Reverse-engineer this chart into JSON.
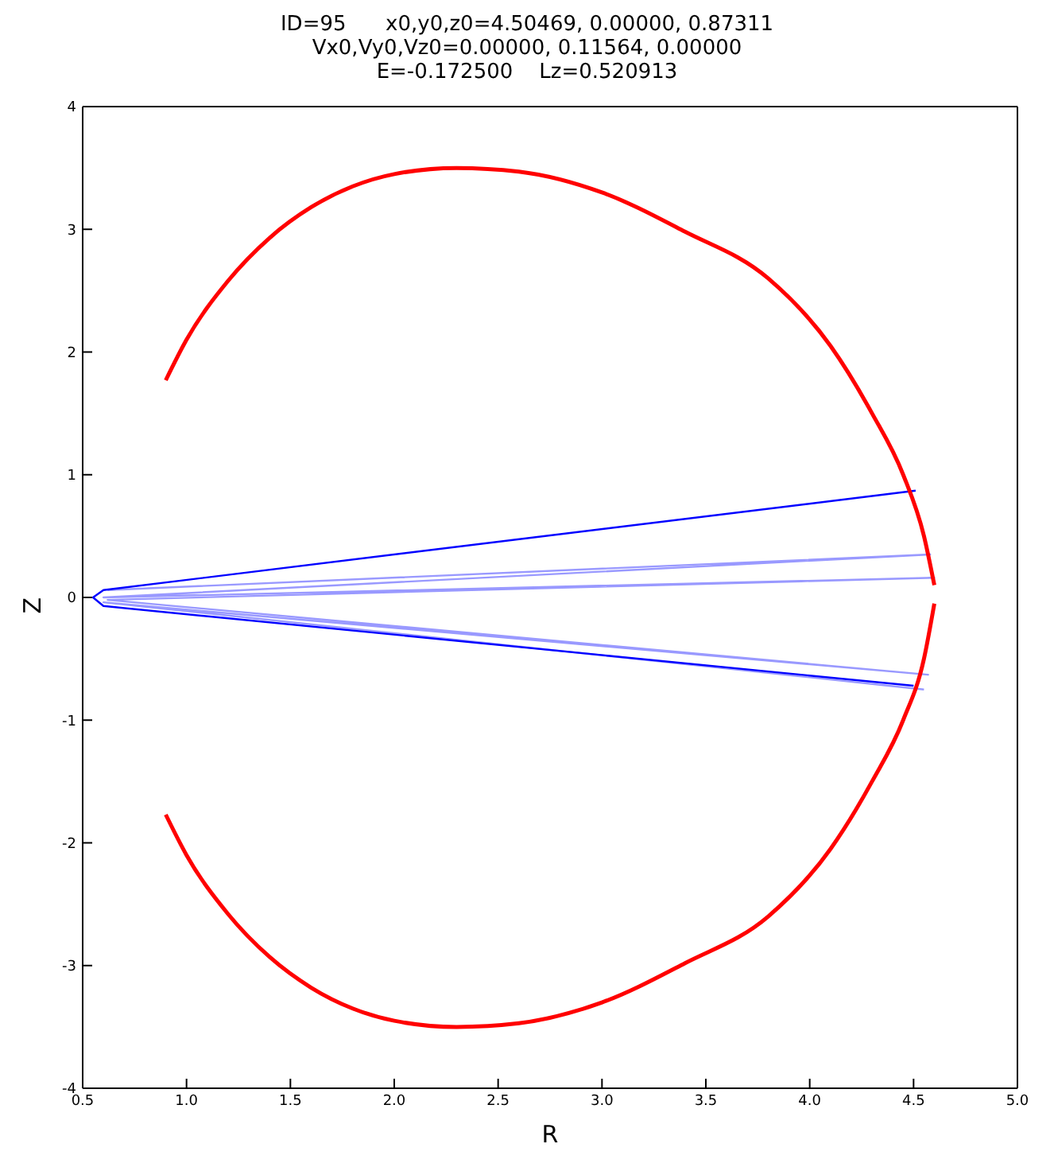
{
  "chart_data": {
    "type": "line",
    "title": "ID=95      x0,y0,z0=4.50469, 0.00000, 0.87311\nVx0,Vy0,Vz0=0.00000, 0.11564, 0.00000\nE=-0.172500    Lz=0.520913",
    "xlabel": "R",
    "ylabel": "Z",
    "xlim": [
      0.5,
      5.0
    ],
    "xticks": [
      {
        "value": 0.5,
        "label": "0.5"
      },
      {
        "value": 1,
        "label": "1.0"
      },
      {
        "value": 1.5,
        "label": "1.5"
      },
      {
        "value": 2,
        "label": "2.0"
      },
      {
        "value": 2.5,
        "label": "2.5"
      },
      {
        "value": 3,
        "label": "3.0"
      },
      {
        "value": 3.5,
        "label": "3.5"
      },
      {
        "value": 4,
        "label": "4.0"
      },
      {
        "value": 4.5,
        "label": "4.5"
      },
      {
        "value": 5,
        "label": "5.0"
      }
    ],
    "ylim": [
      -4,
      4
    ],
    "yticks": [
      -4,
      -3,
      -2,
      -1,
      0,
      1,
      2,
      3,
      4
    ],
    "marker": "none",
    "line_style": "solid",
    "series": [
      {
        "color": "#9999ff",
        "x": [
          0.62,
          4.58,
          0.6,
          4.6,
          0.62,
          4.57,
          0.6,
          4.55
        ],
        "values": [
          0.06,
          0.35,
          0.0,
          0.16,
          -0.02,
          -0.63,
          -0.04,
          -0.75
        ]
      },
      {
        "color": "#0000ff",
        "x": [
          4.51,
          0.6,
          0.55,
          0.6,
          4.5
        ],
        "values": [
          0.87,
          0.06,
          0.0,
          -0.07,
          -0.72
        ]
      },
      {
        "color": "#ff0000",
        "x": [
          0.9,
          1.0,
          1.2,
          1.4,
          1.6,
          1.8,
          2.0,
          2.3,
          2.6,
          3.0,
          3.4,
          3.8,
          4.1,
          4.3,
          4.45,
          4.55,
          4.6
        ],
        "values": [
          1.77,
          2.1,
          2.58,
          2.93,
          3.18,
          3.35,
          3.45,
          3.5,
          3.47,
          3.3,
          2.98,
          2.6,
          2.05,
          1.5,
          1.0,
          0.5,
          0.1
        ]
      },
      {
        "color": "#ff0000",
        "x": [
          0.9,
          1.0,
          1.2,
          1.4,
          1.6,
          1.8,
          2.0,
          2.3,
          2.6,
          3.0,
          3.4,
          3.8,
          4.1,
          4.3,
          4.45,
          4.55,
          4.6
        ],
        "values": [
          -1.77,
          -2.1,
          -2.58,
          -2.93,
          -3.18,
          -3.35,
          -3.45,
          -3.5,
          -3.47,
          -3.3,
          -2.98,
          -2.6,
          -2.05,
          -1.5,
          -1.0,
          -0.5,
          -0.05
        ]
      }
    ]
  }
}
